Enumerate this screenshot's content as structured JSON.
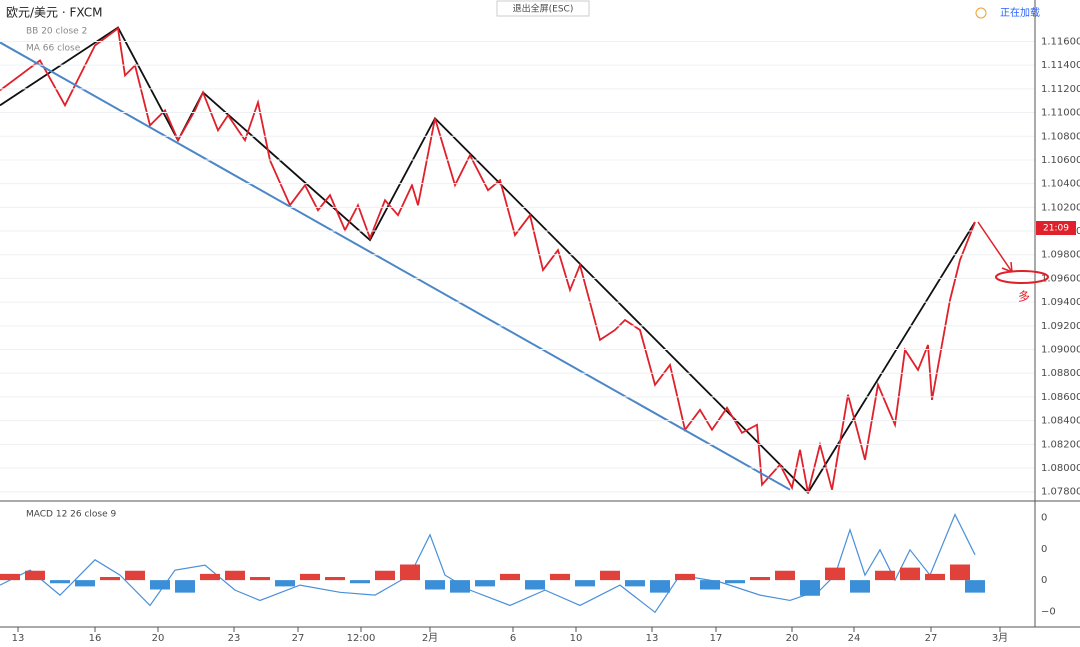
{
  "ui": {
    "exit_fullscreen": "退出全屏(ESC)",
    "loading": "正在加载",
    "price_tag": "21:09",
    "note": "多"
  },
  "chart_data": [
    {
      "type": "line",
      "title": "欧元/美元 · FXCM",
      "indicators": [
        "BB 20 close 2",
        "MA 66 close"
      ],
      "xlim": [
        0,
        103.5
      ],
      "ylim": [
        1.0773,
        1.1195
      ],
      "xticks": [
        {
          "value": 1.8,
          "label": "13"
        },
        {
          "value": 9.5,
          "label": "16"
        },
        {
          "value": 15.8,
          "label": "20"
        },
        {
          "value": 23.4,
          "label": "23"
        },
        {
          "value": 29.8,
          "label": "27"
        },
        {
          "value": 36.1,
          "label": "12:00"
        },
        {
          "value": 43,
          "label": "2月"
        },
        {
          "value": 51.3,
          "label": "6"
        },
        {
          "value": 57.6,
          "label": "10"
        },
        {
          "value": 65.2,
          "label": "13"
        },
        {
          "value": 71.6,
          "label": "17"
        },
        {
          "value": 79.2,
          "label": "20"
        },
        {
          "value": 85.4,
          "label": "24"
        },
        {
          "value": 93.1,
          "label": "27"
        },
        {
          "value": 100,
          "label": "3月"
        }
      ],
      "yticks": [
        {
          "value": 1.078,
          "label": "1.07800"
        },
        {
          "value": 1.08,
          "label": "1.08000"
        },
        {
          "value": 1.082,
          "label": "1.08200"
        },
        {
          "value": 1.084,
          "label": "1.08400"
        },
        {
          "value": 1.086,
          "label": "1.08600"
        },
        {
          "value": 1.088,
          "label": "1.08800"
        },
        {
          "value": 1.09,
          "label": "1.09000"
        },
        {
          "value": 1.092,
          "label": "1.09200"
        },
        {
          "value": 1.094,
          "label": "1.09400"
        },
        {
          "value": 1.096,
          "label": "1.09600"
        },
        {
          "value": 1.098,
          "label": "1.09800"
        },
        {
          "value": 1.1,
          "label": "1.10000"
        },
        {
          "value": 1.102,
          "label": "1.10200"
        },
        {
          "value": 1.104,
          "label": "1.10400"
        },
        {
          "value": 1.106,
          "label": "1.10600"
        },
        {
          "value": 1.108,
          "label": "1.10800"
        },
        {
          "value": 1.11,
          "label": "1.11000"
        },
        {
          "value": 1.112,
          "label": "1.11200"
        },
        {
          "value": 1.114,
          "label": "1.11400"
        },
        {
          "value": 1.116,
          "label": "1.11600"
        }
      ],
      "grid": true,
      "series": [
        {
          "color": "#4a86c8",
          "x": [
            0,
            79
          ],
          "values": [
            1.11592,
            1.07817
          ]
        },
        {
          "color": "#e0202a",
          "x": [
            0,
            4,
            6.5,
            9.5,
            11.8,
            12.5,
            13.5,
            15,
            16.5,
            17.8,
            19.5,
            20.3,
            21.8,
            22.8,
            24.5,
            25.8,
            27,
            29,
            30.5,
            31.8,
            33,
            34.5,
            35.8,
            37,
            38.5,
            39.8,
            41.2,
            41.8,
            43.5,
            45.5,
            47,
            48.8,
            50,
            51.5,
            53,
            54.3,
            55.8,
            57,
            58,
            60,
            61.5,
            62.5,
            64,
            65.5,
            67,
            68.5,
            70,
            71.2,
            72.7,
            74.2,
            75.7,
            76.2,
            78,
            79.2,
            80,
            80.8,
            82,
            83.2,
            84.8,
            86.5,
            87.8,
            89.5,
            90.5,
            91.8,
            92.8,
            93.2,
            95,
            96,
            97.5
          ],
          "values": [
            1.11187,
            1.1144,
            1.11061,
            1.11566,
            1.1171,
            1.11314,
            1.11398,
            1.10892,
            1.11019,
            1.10766,
            1.11019,
            1.1117,
            1.1085,
            1.10977,
            1.10766,
            1.11086,
            1.10597,
            1.10218,
            1.10387,
            1.10176,
            1.10303,
            1.10008,
            1.10218,
            1.0994,
            1.1026,
            1.10134,
            1.10387,
            1.10218,
            1.10951,
            1.10387,
            1.1064,
            1.10345,
            1.10429,
            1.09966,
            1.10134,
            1.09671,
            1.09839,
            1.09502,
            1.09713,
            1.09081,
            1.09165,
            1.09249,
            1.09165,
            1.08702,
            1.0887,
            1.08323,
            1.08491,
            1.08323,
            1.08508,
            1.08297,
            1.08365,
            1.07859,
            1.08028,
            1.07834,
            1.08154,
            1.07792,
            1.08196,
            1.07817,
            1.08618,
            1.0807,
            1.08702,
            1.08365,
            1.08997,
            1.08828,
            1.09039,
            1.08575,
            1.09418,
            1.09755,
            1.10075
          ]
        },
        {
          "color": "#111111",
          "x": [
            0,
            11.8,
            17.8,
            20.3,
            37,
            43.5,
            80.8,
            97.5
          ],
          "values": [
            1.11061,
            1.11718,
            1.10766,
            1.1117,
            1.09924,
            1.10951,
            1.07792,
            1.10075
          ]
        }
      ]
    },
    {
      "type": "macd",
      "title": "MACD 12 26 close 9",
      "xlim": [
        0,
        103.5
      ],
      "ylim": [
        -0.0015,
        0.0025
      ],
      "yticks": [
        {
          "value": 0.002,
          "label": "0"
        },
        {
          "value": 0.001,
          "label": "0"
        },
        {
          "value": 0,
          "label": "0"
        },
        {
          "value": -0.001,
          "label": "−0"
        }
      ],
      "line_color": "#4a90d9",
      "up_color": "#e0413a",
      "down_color": "#3b8fd8",
      "x": [
        0,
        3,
        6,
        9.5,
        12,
        15,
        17.5,
        20.5,
        23.5,
        26,
        30,
        34,
        37.5,
        41,
        43,
        44.5,
        47,
        51,
        54.5,
        58,
        62,
        65.5,
        68,
        72,
        76,
        79,
        82,
        83.5,
        85,
        86.5,
        88,
        89.5,
        91,
        93,
        95.5,
        97.5
      ],
      "values": [
        -0.00016,
        0.00032,
        -0.00048,
        0.00065,
        0.00016,
        -0.00081,
        0.00032,
        0.00048,
        -0.00032,
        -0.00065,
        -0.00016,
        -0.00039,
        -0.00048,
        0.00016,
        0.00145,
        0.00016,
        -0.00032,
        -0.00081,
        -0.00032,
        -0.00081,
        -0.00016,
        -0.00103,
        0.00016,
        -6e-05,
        -0.00048,
        -0.00065,
        -0.00032,
        0.00016,
        0.00161,
        0.00016,
        0.00097,
        0,
        0.00097,
        0.00016,
        0.0021,
        0.00081
      ],
      "hist_x": [
        1,
        3.5,
        6,
        8.5,
        11,
        13.5,
        16,
        18.5,
        21,
        23.5,
        26,
        28.5,
        31,
        33.5,
        36,
        38.5,
        41,
        43.5,
        46,
        48.5,
        51,
        53.5,
        56,
        58.5,
        61,
        63.5,
        66,
        68.5,
        71,
        73.5,
        76,
        78.5,
        81,
        83.5,
        86,
        88.5,
        91,
        93.5,
        96,
        97.5
      ],
      "hist": [
        0.0002,
        0.0003,
        -0.0001,
        -0.0002,
        0.0001,
        0.0003,
        -0.0003,
        -0.0004,
        0.0002,
        0.0003,
        0.0001,
        -0.0002,
        0.0002,
        0.0001,
        -0.0001,
        0.0003,
        0.0005,
        -0.0003,
        -0.0004,
        -0.0002,
        0.0002,
        -0.0003,
        0.0002,
        -0.0002,
        0.0003,
        -0.0002,
        -0.0004,
        0.0002,
        -0.0003,
        -0.0001,
        0.0001,
        0.0003,
        -0.0005,
        0.0004,
        -0.0004,
        0.0003,
        0.0004,
        0.0002,
        0.0005,
        -0.0004
      ]
    }
  ]
}
